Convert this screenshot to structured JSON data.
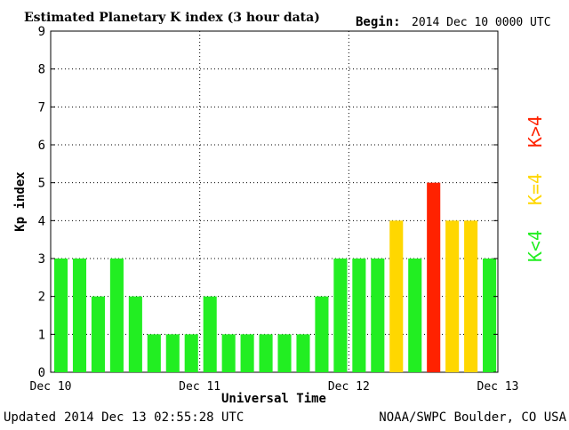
{
  "header": {
    "title": "Estimated Planetary K index (3 hour data)",
    "begin_label": "Begin:",
    "begin_value": "2014 Dec 10 0000 UTC"
  },
  "footer": {
    "updated_label": "Updated",
    "updated_value": "2014 Dec 13 02:55:28 UTC",
    "source": "NOAA/SWPC Boulder, CO USA"
  },
  "legend": {
    "low": "K<4",
    "mid": "K=4",
    "high": "K>4"
  },
  "colors": {
    "low": "#22ee22",
    "mid": "#ffd700",
    "high": "#ff2200"
  },
  "chart_data": {
    "type": "bar",
    "title": "Estimated Planetary K index (3 hour data)",
    "xlabel": "Universal Time",
    "ylabel": "Kp index",
    "ylim": [
      0,
      9
    ],
    "yticks": [
      "0",
      "1",
      "2",
      "3",
      "4",
      "5",
      "6",
      "7",
      "8",
      "9"
    ],
    "xticks": [
      "Dec 10",
      "Dec 11",
      "Dec 12",
      "Dec 13"
    ],
    "grid": true,
    "bar_interval": "3 hours",
    "values": [
      3,
      3,
      2,
      3,
      2,
      1,
      1,
      1,
      2,
      1,
      1,
      1,
      1,
      1,
      2,
      3,
      3,
      3,
      4,
      3,
      5,
      4,
      4,
      3
    ]
  }
}
